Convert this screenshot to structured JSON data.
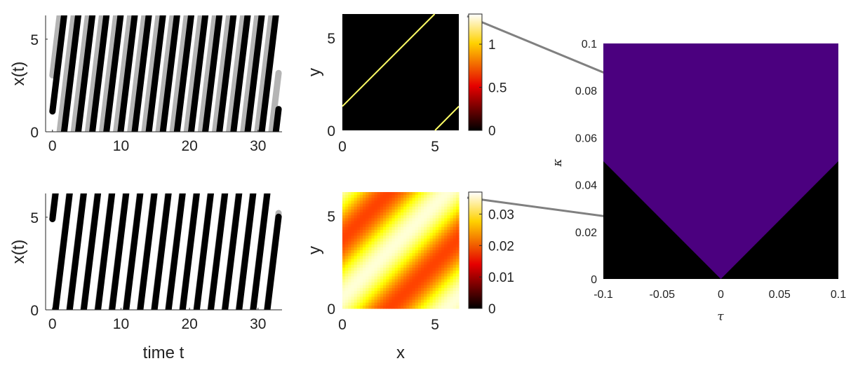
{
  "chart_data": [
    {
      "id": "traj_top",
      "type": "line",
      "xlabel": "",
      "ylabel": "x(t)",
      "xlim": [
        -1,
        33.5
      ],
      "ylim": [
        0,
        6.283
      ],
      "xticks": [
        0,
        10,
        20,
        30
      ],
      "yticks": [
        0,
        5
      ],
      "xtick_labels": [
        "0",
        "10",
        "20",
        "30"
      ],
      "ytick_labels": [
        "0",
        "5"
      ],
      "period": 2.06,
      "slope": 3.05,
      "t_end": 33,
      "series": [
        {
          "color": "#b4b4b4",
          "phase0": 3.05
        },
        {
          "color": "#000000",
          "phase0": 1.1
        }
      ]
    },
    {
      "id": "traj_bottom",
      "type": "line",
      "xlabel": "time t",
      "ylabel": "x(t)",
      "xlim": [
        -1,
        33.5
      ],
      "ylim": [
        0,
        6.283
      ],
      "xticks": [
        0,
        10,
        20,
        30
      ],
      "yticks": [
        0,
        5
      ],
      "xtick_labels": [
        "0",
        "10",
        "20",
        "30"
      ],
      "ytick_labels": [
        "0",
        "5"
      ],
      "period": 2.06,
      "slope": 3.05,
      "t_end": 33,
      "series": [
        {
          "color": "#b4b4b4",
          "phase0": 5.1
        },
        {
          "color": "#000000",
          "phase0": 4.9
        }
      ]
    },
    {
      "id": "density_top",
      "type": "heatmap",
      "xlabel": "",
      "ylabel": "y",
      "xlim": [
        0,
        6.283
      ],
      "ylim": [
        0,
        6.283
      ],
      "xticks": [
        0,
        5
      ],
      "yticks": [
        0,
        5
      ],
      "xtick_labels": [
        "0",
        "5"
      ],
      "ytick_labels": [
        "0",
        "5"
      ],
      "description_lines": [
        {
          "from": [
            0,
            1.3
          ],
          "to": [
            4.98,
            6.283
          ]
        },
        {
          "from": [
            5.0,
            0
          ],
          "to": [
            6.283,
            1.3
          ]
        }
      ],
      "line_color": "#ffff66",
      "colorbar": {
        "min": 0,
        "max": 1.35,
        "ticks": [
          0,
          0.5,
          1
        ],
        "tick_labels": [
          "0",
          "0.5",
          "1"
        ]
      }
    },
    {
      "id": "density_bottom",
      "type": "heatmap",
      "xlabel": "x",
      "ylabel": "y",
      "xlim": [
        0,
        6.283
      ],
      "ylim": [
        0,
        6.283
      ],
      "xticks": [
        0,
        5
      ],
      "yticks": [
        0,
        5
      ],
      "xtick_labels": [
        "0",
        "5"
      ],
      "ytick_labels": [
        "0",
        "5"
      ],
      "field": {
        "base": 0.0265,
        "amplitude": 0.009,
        "form": "cos(x - y + 0.6)"
      },
      "colorbar": {
        "min": 0,
        "max": 0.037,
        "ticks": [
          0,
          0.01,
          0.02,
          0.03
        ],
        "tick_labels": [
          "0",
          "0.01",
          "0.02",
          "0.03"
        ]
      }
    },
    {
      "id": "stability",
      "type": "area",
      "xlabel": "τ",
      "ylabel": "κ",
      "xlim": [
        -0.1,
        0.1
      ],
      "ylim": [
        0,
        0.1
      ],
      "xticks": [
        -0.1,
        -0.05,
        0,
        0.05,
        0.1
      ],
      "yticks": [
        0,
        0.02,
        0.04,
        0.06,
        0.08,
        0.1
      ],
      "xtick_labels": [
        "-0.1",
        "-0.05",
        "0",
        "0.05",
        "0.1"
      ],
      "ytick_labels": [
        "0",
        "0.02",
        "0.04",
        "0.06",
        "0.08",
        "0.1"
      ],
      "boundary": {
        "kappa_at_tau0": 0,
        "kappa_at_edges": 0.05
      },
      "region_colors": {
        "upper": "#4b007f",
        "lower": "#000000"
      },
      "markers": [
        {
          "tau": -0.078,
          "kappa": 0.084
        },
        {
          "tau": -0.073,
          "kappa": 0.025
        }
      ]
    }
  ]
}
